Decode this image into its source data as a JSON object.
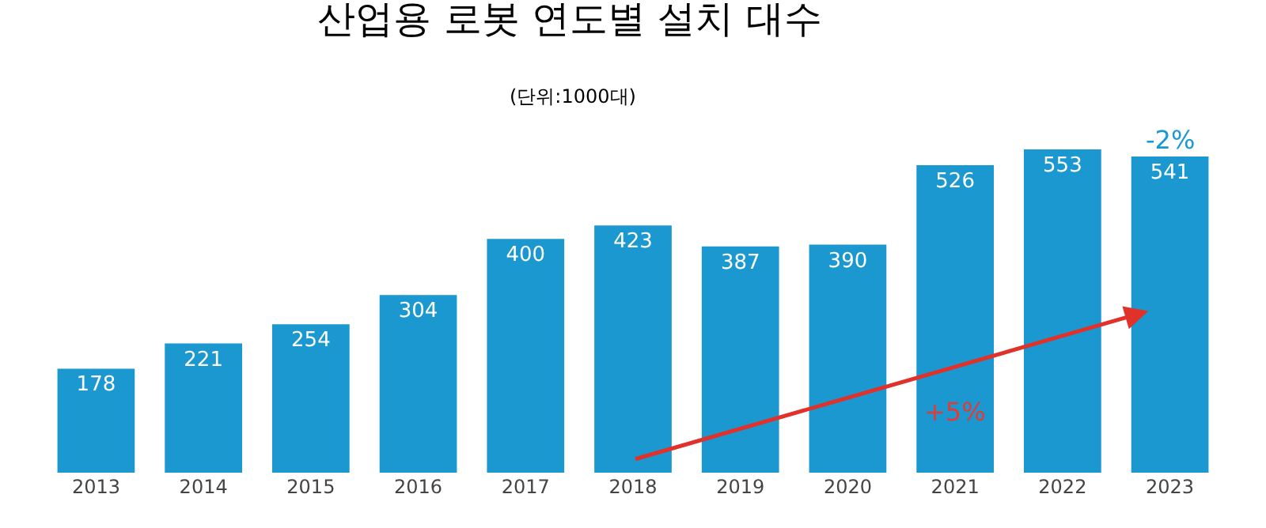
{
  "chart_data": {
    "type": "bar",
    "title": "산업용 로봇 연도별 설치 대수",
    "subtitle": "(단위:1000대)",
    "categories": [
      "2013",
      "2014",
      "2015",
      "2016",
      "2017",
      "2018",
      "2019",
      "2020",
      "2021",
      "2022",
      "2023"
    ],
    "values": [
      178,
      221,
      254,
      304,
      400,
      423,
      387,
      390,
      526,
      553,
      541
    ],
    "color": "#1b98d0",
    "data_labels": true,
    "annotations": [
      "-2%",
      "+5%"
    ]
  }
}
